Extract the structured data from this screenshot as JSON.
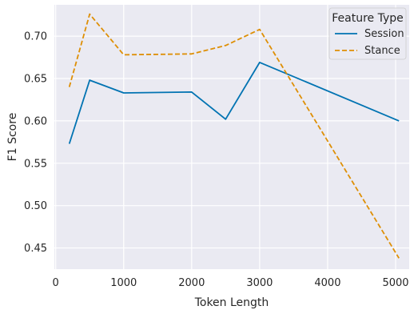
{
  "chart_data": {
    "type": "line",
    "title": "",
    "xlabel": "Token Length",
    "ylabel": "F1 Score",
    "xlim": [
      -20,
      5200
    ],
    "ylim": [
      0.425,
      0.737
    ],
    "xticks": [
      0,
      1000,
      2000,
      3000,
      4000,
      5000
    ],
    "xtick_labels": [
      "0",
      "1000",
      "2000",
      "3000",
      "4000",
      "5000"
    ],
    "yticks": [
      0.45,
      0.5,
      0.55,
      0.6,
      0.65,
      0.7
    ],
    "ytick_labels": [
      "0.45",
      "0.50",
      "0.55",
      "0.60",
      "0.65",
      "0.70"
    ],
    "grid": true,
    "background": "#eaeaf2",
    "legend": {
      "title": "Feature Type",
      "placement": "top-right"
    },
    "series": [
      {
        "name": "Session",
        "color": "#0173b2",
        "dash": "solid",
        "x": [
          200,
          500,
          1000,
          2000,
          2500,
          3000,
          5050
        ],
        "y": [
          0.573,
          0.648,
          0.633,
          0.634,
          0.602,
          0.669,
          0.6
        ]
      },
      {
        "name": "Stance",
        "color": "#de8f05",
        "dash": "dashed",
        "x": [
          200,
          500,
          1000,
          2000,
          2500,
          3000,
          5050
        ],
        "y": [
          0.64,
          0.726,
          0.678,
          0.679,
          0.689,
          0.708,
          0.438
        ]
      }
    ]
  }
}
